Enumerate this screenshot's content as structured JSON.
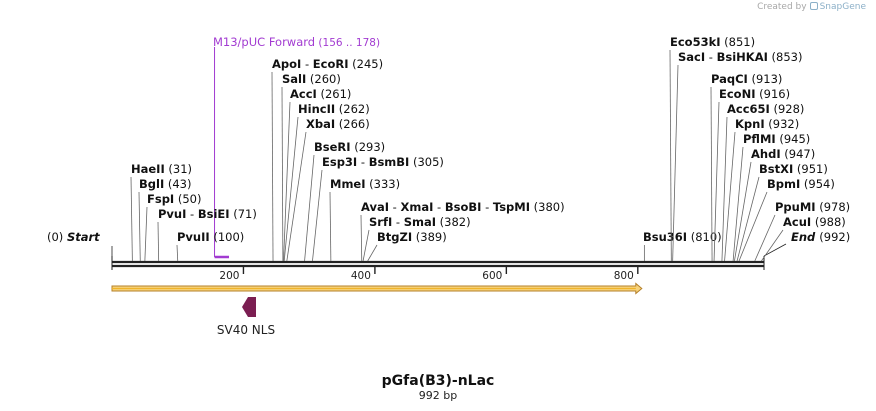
{
  "credit": {
    "prefix": "Created by",
    "brand": "SnapGene"
  },
  "map": {
    "name": "pGfa(B3)-nLac",
    "length_label": "992 bp",
    "length": 992,
    "start_label": "Start",
    "start_pos": "(0)",
    "end_label": "End",
    "end_pos": "(992)",
    "ruler_ticks": [
      "200",
      "400",
      "600",
      "800"
    ],
    "primer": {
      "name": "M13/pUC Forward",
      "range": "(156 .. 178)",
      "color": "#a23bd1"
    },
    "feature_arrow": {
      "color": "#f0b429",
      "from": 0,
      "to": 800
    },
    "feature": {
      "name": "SV40 NLS",
      "color": "#7b1e52"
    }
  },
  "sites": {
    "left": [
      {
        "names": [
          "HaeII"
        ],
        "pos": "(31)"
      },
      {
        "names": [
          "BglI"
        ],
        "pos": "(43)"
      },
      {
        "names": [
          "FspI"
        ],
        "pos": "(50)"
      },
      {
        "names": [
          "PvuI",
          "BsiEI"
        ],
        "pos": "(71)"
      },
      {
        "names": [
          "PvuII"
        ],
        "pos": "(100)"
      }
    ],
    "mid": [
      {
        "names": [
          "ApoI",
          "EcoRI"
        ],
        "pos": "(245)"
      },
      {
        "names": [
          "SalI"
        ],
        "pos": "(260)"
      },
      {
        "names": [
          "AccI"
        ],
        "pos": "(261)"
      },
      {
        "names": [
          "HincII"
        ],
        "pos": "(262)"
      },
      {
        "names": [
          "XbaI"
        ],
        "pos": "(266)"
      },
      {
        "names": [
          "BseRI"
        ],
        "pos": "(293)"
      },
      {
        "names": [
          "Esp3I",
          "BsmBI"
        ],
        "pos": "(305)"
      },
      {
        "names": [
          "MmeI"
        ],
        "pos": "(333)"
      },
      {
        "names": [
          "AvaI",
          "XmaI",
          "BsoBI",
          "TspMI"
        ],
        "pos": "(380)"
      },
      {
        "names": [
          "SrfI",
          "SmaI"
        ],
        "pos": "(382)"
      },
      {
        "names": [
          "BtgZI"
        ],
        "pos": "(389)"
      }
    ],
    "bsu": {
      "names": [
        "Bsu36I"
      ],
      "pos": "(810)"
    },
    "right": [
      {
        "names": [
          "Eco53kI"
        ],
        "pos": "(851)"
      },
      {
        "names": [
          "SacI",
          "BsiHKAI"
        ],
        "pos": "(853)"
      },
      {
        "names": [
          "PaqCI"
        ],
        "pos": "(913)"
      },
      {
        "names": [
          "EcoNI"
        ],
        "pos": "(916)"
      },
      {
        "names": [
          "Acc65I"
        ],
        "pos": "(928)"
      },
      {
        "names": [
          "KpnI"
        ],
        "pos": "(932)"
      },
      {
        "names": [
          "PflMI"
        ],
        "pos": "(945)"
      },
      {
        "names": [
          "AhdI"
        ],
        "pos": "(947)"
      },
      {
        "names": [
          "BstXI"
        ],
        "pos": "(951)"
      },
      {
        "names": [
          "BpmI"
        ],
        "pos": "(954)"
      },
      {
        "names": [
          "PpuMI"
        ],
        "pos": "(978)"
      },
      {
        "names": [
          "AcuI"
        ],
        "pos": "(988)"
      }
    ]
  }
}
